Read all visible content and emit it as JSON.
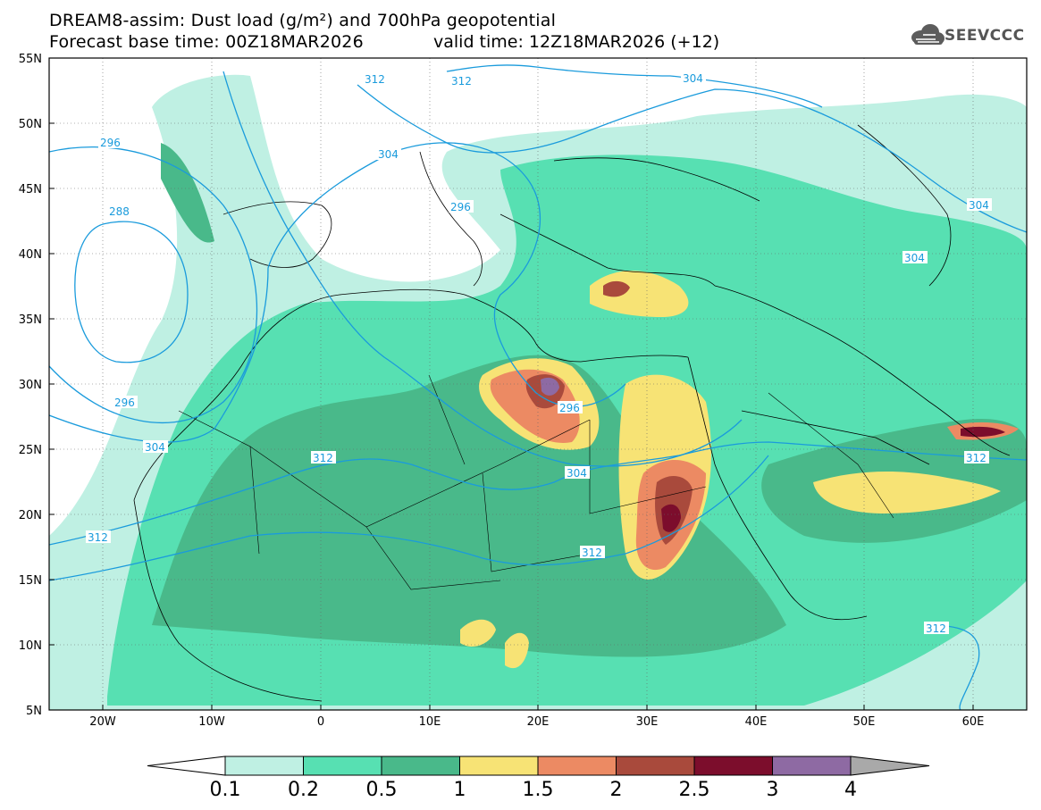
{
  "header": {
    "title_line_1": "DREAM8-assim: Dust load (g/m²) and 700hPa geopotential",
    "base_time": "Forecast base time: 00Z18MAR2026",
    "valid_time": "valid time: 12Z18MAR2026 (+12)"
  },
  "logo": {
    "text": "SEEVCCC",
    "icon": "cloud-logo-icon"
  },
  "map": {
    "lon_ticks": [
      "20W",
      "10W",
      "0",
      "10E",
      "20E",
      "30E",
      "40E",
      "50E",
      "60E"
    ],
    "lat_ticks": [
      "55N",
      "50N",
      "45N",
      "40N",
      "35N",
      "30N",
      "25N",
      "20N",
      "15N",
      "10N",
      "5N"
    ],
    "lon_range": [
      -25,
      65
    ],
    "lat_range": [
      5,
      55
    ],
    "gridlines": true
  },
  "contours": {
    "color": "#1a9bdc",
    "labels": [
      "312",
      "312",
      "304",
      "296",
      "304",
      "288",
      "296",
      "296",
      "304",
      "296",
      "304",
      "312",
      "312",
      "304",
      "304",
      "312",
      "312",
      "312"
    ]
  },
  "colorbar": {
    "colors": [
      "#bff0e3",
      "#57e0b2",
      "#49b98a",
      "#f7e375",
      "#ec8a63",
      "#a94a3c",
      "#7c0d2c",
      "#8e6aa3",
      "#a9a9a9"
    ],
    "labels": [
      "0.1",
      "0.2",
      "0.5",
      "1",
      "1.5",
      "2",
      "2.5",
      "3",
      "4"
    ]
  }
}
